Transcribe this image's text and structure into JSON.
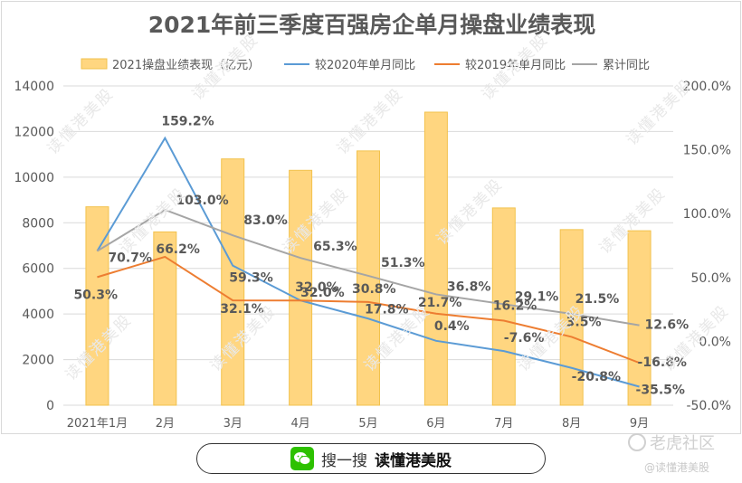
{
  "title": "2021年前三季度百强房企单月操盘业绩表现",
  "watermark_text": "读懂港美股",
  "footer": {
    "prefix": "搜一搜",
    "brand": "读懂港美股"
  },
  "brand_logo": {
    "name": "老虎社区",
    "sub": "@读懂港美股"
  },
  "chart_data": {
    "type": "bar+line",
    "title": "2021年前三季度百强房企单月操盘业绩表现",
    "categories": [
      "2021年1月",
      "2月",
      "3月",
      "4月",
      "5月",
      "6月",
      "7月",
      "8月",
      "9月"
    ],
    "y_left": {
      "min": 0,
      "max": 14000,
      "step": 2000,
      "ticks": [
        "0",
        "2000",
        "4000",
        "6000",
        "8000",
        "10000",
        "12000",
        "14000"
      ]
    },
    "y_right": {
      "min": -50,
      "max": 200,
      "step": 50,
      "ticks": [
        "-50.0%",
        "0.0%",
        "50.0%",
        "100.0%",
        "150.0%",
        "200.0%"
      ]
    },
    "grid": true,
    "legend_position": "top",
    "bars": {
      "name": "2021操盘业绩表现（亿元）",
      "color": "#ffd680",
      "values": [
        8700,
        7600,
        10800,
        10300,
        11150,
        12850,
        8650,
        7700,
        7650
      ]
    },
    "lines": [
      {
        "name": "较2020年单月同比",
        "color": "#5b9bd5",
        "values": [
          70.7,
          159.2,
          59.3,
          32.0,
          17.8,
          0.4,
          -7.6,
          -20.8,
          -35.5
        ],
        "labels": [
          "70.7%",
          "159.2%",
          "59.3%",
          "32.0%",
          "17.8%",
          "0.4%",
          "-7.6%",
          "-20.8%",
          "-35.5%"
        ]
      },
      {
        "name": "较2019年单月同比",
        "color": "#ed7d31",
        "values": [
          50.3,
          66.2,
          32.1,
          32.0,
          30.8,
          21.7,
          16.2,
          3.5,
          -16.8
        ],
        "labels": [
          "50.3%",
          "66.2%",
          "32.1%",
          "32.0%",
          "30.8%",
          "21.7%",
          "16.2%",
          "3.5%",
          "-16.8%"
        ]
      },
      {
        "name": "累计同比",
        "color": "#a5a5a5",
        "values": [
          70.7,
          103.0,
          83.0,
          65.3,
          51.3,
          36.8,
          29.1,
          21.5,
          12.6
        ],
        "labels": [
          "",
          "103.0%",
          "83.0%",
          "65.3%",
          "51.3%",
          "36.8%",
          "29.1%",
          "21.5%",
          "12.6%"
        ]
      }
    ]
  }
}
